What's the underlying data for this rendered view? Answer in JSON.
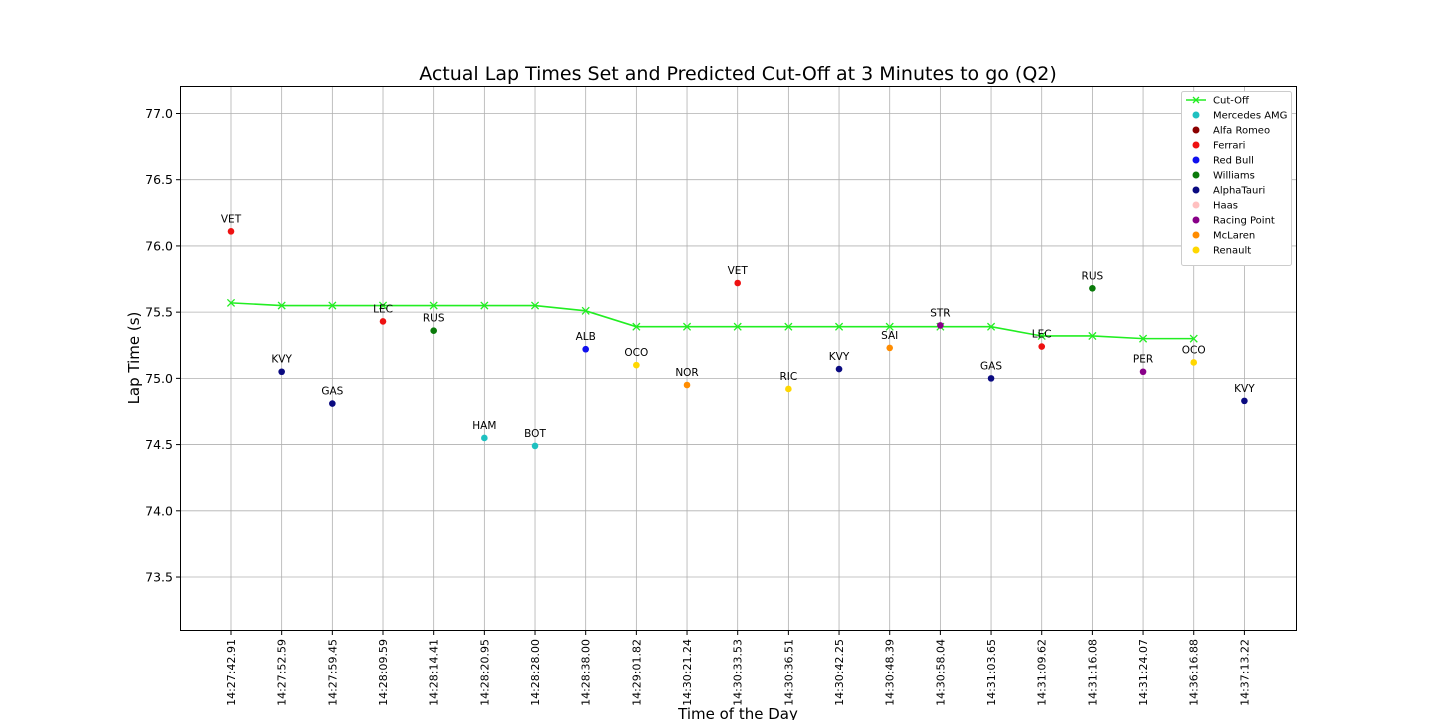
{
  "chart_data": {
    "type": "scatter",
    "title": "Actual Lap Times Set and Predicted Cut-Off at 3 Minutes to go (Q2)",
    "xlabel": "Time of the Day",
    "ylabel": "Lap Time (s)",
    "ylim": [
      73.1,
      77.2
    ],
    "yticks": [
      "73.5",
      "74.0",
      "74.5",
      "75.0",
      "75.5",
      "76.0",
      "76.5",
      "77.0"
    ],
    "grid": true,
    "legend_position": "top-right",
    "x": [
      "14:27:42.91",
      "14:27:52.59",
      "14:27:59.45",
      "14:28:09.59",
      "14:28:14.41",
      "14:28:20.95",
      "14:28:28.00",
      "14:28:38.00",
      "14:29:01.82",
      "14:30:21.24",
      "14:30:33.53",
      "14:30:36.51",
      "14:30:42.25",
      "14:30:48.39",
      "14:30:58.04",
      "14:31:03.65",
      "14:31:09.62",
      "14:31:16.08",
      "14:31:24.07",
      "14:36:16.88",
      "14:37:13.22"
    ],
    "cutoff": {
      "name": "Cut-Off",
      "color": "#22ee22",
      "values": [
        75.57,
        75.55,
        75.55,
        75.55,
        75.55,
        75.55,
        75.55,
        75.51,
        75.39,
        75.39,
        75.39,
        75.39,
        75.39,
        75.39,
        75.39,
        75.39,
        75.32,
        75.32,
        75.3,
        75.3,
        null
      ]
    },
    "teams": [
      {
        "name": "Mercedes AMG",
        "color": "#1ec0c0"
      },
      {
        "name": "Alfa Romeo",
        "color": "#8b0000"
      },
      {
        "name": "Ferrari",
        "color": "#ee1111"
      },
      {
        "name": "Red Bull",
        "color": "#1010ee"
      },
      {
        "name": "Williams",
        "color": "#0a7a0a"
      },
      {
        "name": "AlphaTauri",
        "color": "#0a0a80"
      },
      {
        "name": "Haas",
        "color": "#ffc0c0"
      },
      {
        "name": "Racing Point",
        "color": "#880088"
      },
      {
        "name": "McLaren",
        "color": "#ff8c00"
      },
      {
        "name": "Renault",
        "color": "#ffd700"
      }
    ],
    "laps": [
      {
        "driver": "VET",
        "team": "Ferrari",
        "value": 76.11
      },
      {
        "driver": "KVY",
        "team": "AlphaTauri",
        "value": 75.05
      },
      {
        "driver": "GAS",
        "team": "AlphaTauri",
        "value": 74.81
      },
      {
        "driver": "LEC",
        "team": "Ferrari",
        "value": 75.43
      },
      {
        "driver": "RUS",
        "team": "Williams",
        "value": 75.36
      },
      {
        "driver": "HAM",
        "team": "Mercedes AMG",
        "value": 74.55
      },
      {
        "driver": "BOT",
        "team": "Mercedes AMG",
        "value": 74.49
      },
      {
        "driver": "ALB",
        "team": "Red Bull",
        "value": 75.22
      },
      {
        "driver": "OCO",
        "team": "Renault",
        "value": 75.1
      },
      {
        "driver": "NOR",
        "team": "McLaren",
        "value": 74.95
      },
      {
        "driver": "VET",
        "team": "Ferrari",
        "value": 75.72
      },
      {
        "driver": "RIC",
        "team": "Renault",
        "value": 74.92
      },
      {
        "driver": "KVY",
        "team": "AlphaTauri",
        "value": 75.07
      },
      {
        "driver": "SAI",
        "team": "McLaren",
        "value": 75.23
      },
      {
        "driver": "STR",
        "team": "Racing Point",
        "value": 75.4
      },
      {
        "driver": "GAS",
        "team": "AlphaTauri",
        "value": 75.0
      },
      {
        "driver": "LEC",
        "team": "Ferrari",
        "value": 75.24
      },
      {
        "driver": "RUS",
        "team": "Williams",
        "value": 75.68
      },
      {
        "driver": "PER",
        "team": "Racing Point",
        "value": 75.05
      },
      {
        "driver": "OCO",
        "team": "Renault",
        "value": 75.12
      },
      {
        "driver": "KVY",
        "team": "AlphaTauri",
        "value": 74.83
      }
    ]
  }
}
